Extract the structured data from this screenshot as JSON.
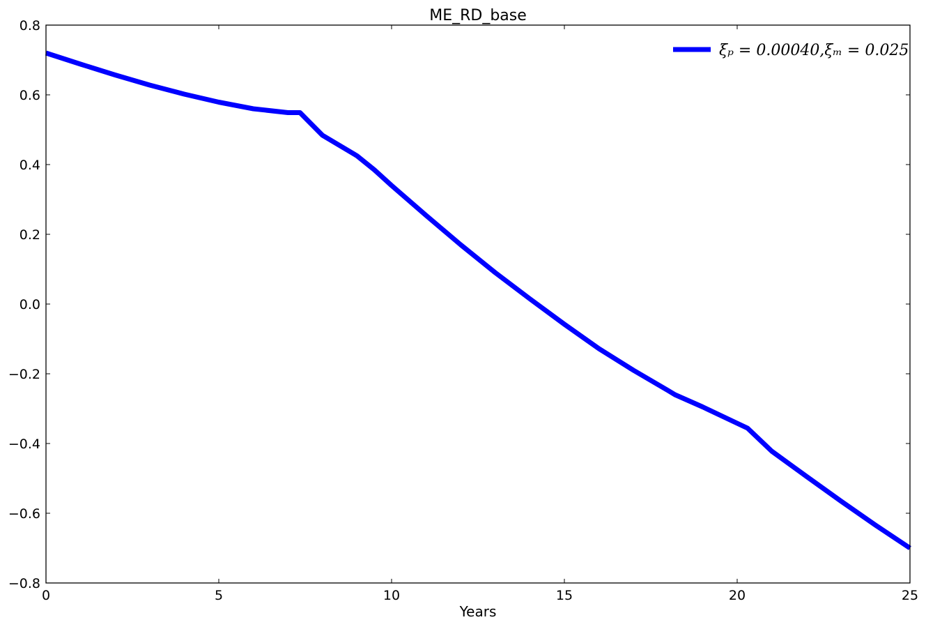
{
  "chart_data": {
    "type": "line",
    "title": "ME_RD_base",
    "xlabel": "Years",
    "ylabel": "",
    "xlim": [
      0,
      25
    ],
    "ylim": [
      -0.8,
      0.8
    ],
    "xticks": [
      0,
      5,
      10,
      15,
      20,
      25
    ],
    "xtick_labels": [
      "0",
      "5",
      "10",
      "15",
      "20",
      "25"
    ],
    "yticks": [
      0.8,
      0.6,
      0.4,
      0.2,
      0.0,
      -0.2,
      -0.4,
      -0.6,
      -0.8
    ],
    "ytick_labels": [
      "0.8",
      "0.6",
      "0.4",
      "0.2",
      "0.0",
      "−0.2",
      "−0.4",
      "−0.6",
      "−0.8"
    ],
    "grid": false,
    "legend_position": "top-right",
    "series": [
      {
        "name": "ξₚ = 0.00040,ξₘ = 0.025",
        "color": "#0000ff",
        "x": [
          0,
          1,
          2,
          3,
          4,
          5,
          6,
          7,
          7.35,
          8,
          9,
          9.5,
          10,
          11,
          12,
          13,
          14,
          15,
          16,
          17,
          18,
          18.2,
          19,
          20,
          20.3,
          21,
          22,
          23,
          24,
          25
        ],
        "y": [
          0.72,
          0.688,
          0.657,
          0.628,
          0.602,
          0.579,
          0.56,
          0.549,
          0.549,
          0.484,
          0.425,
          0.385,
          0.34,
          0.254,
          0.17,
          0.09,
          0.015,
          -0.058,
          -0.128,
          -0.19,
          -0.248,
          -0.26,
          -0.295,
          -0.342,
          -0.356,
          -0.422,
          -0.494,
          -0.565,
          -0.634,
          -0.7
        ]
      }
    ]
  }
}
